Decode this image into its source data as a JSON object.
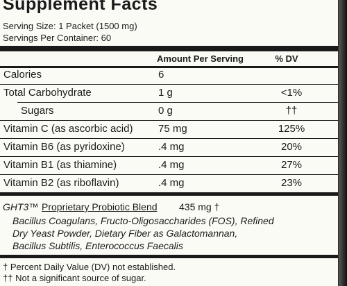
{
  "header": {
    "title": "Supplement Facts",
    "serving_size": "Serving Size: 1 Packet (1500 mg)",
    "servings_per_container": "Servings Per Container: 60"
  },
  "table": {
    "columns": [
      "Amount Per Serving",
      "% DV"
    ],
    "rows": [
      [
        "Calories",
        "6",
        ""
      ],
      [
        "Total Carbohydrate",
        "1 g",
        "<1%"
      ],
      [
        "Sugars",
        "0 g",
        "††"
      ],
      [
        "Vitamin C (as ascorbic acid)",
        "75 mg",
        "125%"
      ],
      [
        "Vitamin B6 (as pyridoxine)",
        ".4 mg",
        "20%"
      ],
      [
        "Vitamin B1 (as thiamine)",
        ".4 mg",
        "27%"
      ],
      [
        "Vitamin B2 (as riboflavin)",
        ".4 mg",
        "23%"
      ]
    ]
  },
  "blend": {
    "mark": "GHT3™",
    "name": "Proprietary Probiotic Blend",
    "amount": "435 mg †",
    "ingredients": [
      "Bacillus Coagulans, Fructo-Oligosaccharides (FOS), Refined",
      "Dry Yeast Powder, Dietary Fiber as Galactomannan,",
      "Bacillus Subtilis, Enterococcus Faecalis"
    ]
  },
  "footnotes": [
    "†  Percent Daily Value (DV) not established.",
    "†† Not a significant source of sugar."
  ]
}
